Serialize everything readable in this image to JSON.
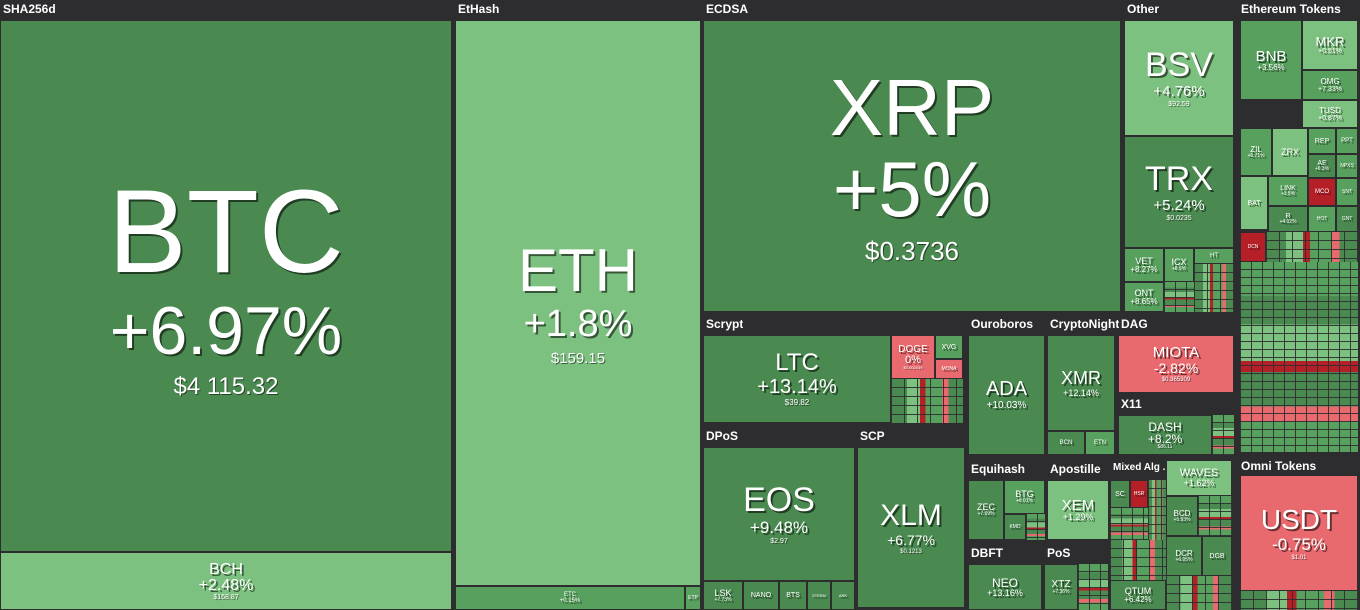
{
  "groups": {
    "sha256d": "SHA256d",
    "ethash": "EtHash",
    "ecdsa": "ECDSA",
    "other": "Other",
    "eth_tokens": "Ethereum Tokens",
    "scrypt": "Scrypt",
    "ouroboros": "Ouroboros",
    "cryptonight": "CryptoNight",
    "dag": "DAG",
    "x11": "X11",
    "dpos": "DPoS",
    "scp": "SCP",
    "equihash": "Equihash",
    "apostille": "Apostille",
    "mixed": "Mixed Alg ...",
    "omni": "Omni Tokens",
    "dbft": "DBFT",
    "pos": "PoS"
  },
  "tiles": {
    "btc": {
      "sym": "BTC",
      "chg": "+6.97%",
      "price": "$4 115.32"
    },
    "bch": {
      "sym": "BCH",
      "chg": "+2.48%",
      "price": "$168.87"
    },
    "eth": {
      "sym": "ETH",
      "chg": "+1.8%",
      "price": "$159.15"
    },
    "etc": {
      "sym": "ETC",
      "chg": "+0.15%",
      "price": ""
    },
    "etp": {
      "sym": "ETP",
      "chg": "",
      "price": ""
    },
    "xrp": {
      "sym": "XRP",
      "chg": "+5%",
      "price": "$0.3736"
    },
    "bsv": {
      "sym": "BSV",
      "chg": "+4.76%",
      "price": "$92.59"
    },
    "trx": {
      "sym": "TRX",
      "chg": "+5.24%",
      "price": "$0.0235"
    },
    "vet": {
      "sym": "VET",
      "chg": "+8.27%",
      "price": ""
    },
    "icx": {
      "sym": "ICX",
      "chg": "+8.5%",
      "price": ""
    },
    "ht": {
      "sym": "HT",
      "chg": "",
      "price": ""
    },
    "ont": {
      "sym": "ONT",
      "chg": "+8.65%",
      "price": ""
    },
    "ltc": {
      "sym": "LTC",
      "chg": "+13.14%",
      "price": "$39.82"
    },
    "doge": {
      "sym": "DOGE",
      "chg": "0%",
      "price": "$0.002039"
    },
    "xvg": {
      "sym": "XVG",
      "chg": "",
      "price": ""
    },
    "mona": {
      "sym": "MONA",
      "chg": "",
      "price": ""
    },
    "ada": {
      "sym": "ADA",
      "chg": "+10.03%",
      "price": ""
    },
    "xmr": {
      "sym": "XMR",
      "chg": "+12.14%",
      "price": ""
    },
    "bcn": {
      "sym": "BCN",
      "chg": "",
      "price": ""
    },
    "etn": {
      "sym": "ETN",
      "chg": "",
      "price": ""
    },
    "miota": {
      "sym": "MIOTA",
      "chg": "-2.82%",
      "price": "$0.365309"
    },
    "dash": {
      "sym": "DASH",
      "chg": "+8.2%",
      "price": "$86.11"
    },
    "eos": {
      "sym": "EOS",
      "chg": "+9.48%",
      "price": "$2.97"
    },
    "lsk": {
      "sym": "LSK",
      "chg": "+7.73%",
      "price": ""
    },
    "nano": {
      "sym": "NANO",
      "chg": "",
      "price": ""
    },
    "bts": {
      "sym": "BTS",
      "chg": "",
      "price": ""
    },
    "steem": {
      "sym": "STEEM",
      "chg": "",
      "price": ""
    },
    "ark": {
      "sym": "ARK",
      "chg": "",
      "price": ""
    },
    "xlm": {
      "sym": "XLM",
      "chg": "+6.77%",
      "price": "$0.1213"
    },
    "zec": {
      "sym": "ZEC",
      "chg": "+7.69%",
      "price": ""
    },
    "btg": {
      "sym": "BTG",
      "chg": "+8.01%",
      "price": ""
    },
    "kmd": {
      "sym": "KMD",
      "chg": "",
      "price": ""
    },
    "xem": {
      "sym": "XEM",
      "chg": "+1.29%",
      "price": ""
    },
    "sc": {
      "sym": "SC",
      "chg": "",
      "price": ""
    },
    "hsr": {
      "sym": "HSR",
      "chg": "",
      "price": ""
    },
    "waves": {
      "sym": "WAVES",
      "chg": "+1.62%",
      "price": ""
    },
    "bcd": {
      "sym": "BCD",
      "chg": "+5.93%",
      "price": ""
    },
    "dcr": {
      "sym": "DCR",
      "chg": "+6.05%",
      "price": ""
    },
    "dgb": {
      "sym": "DGB",
      "chg": "",
      "price": ""
    },
    "qtum": {
      "sym": "QTUM",
      "chg": "+6.42%",
      "price": ""
    },
    "neo": {
      "sym": "NEO",
      "chg": "+13.16%",
      "price": ""
    },
    "xtz": {
      "sym": "XTZ",
      "chg": "+7.36%",
      "price": ""
    },
    "usdt": {
      "sym": "USDT",
      "chg": "-0.75%",
      "price": "$1.01"
    },
    "bnb": {
      "sym": "BNB",
      "chg": "+3.56%",
      "price": ""
    },
    "mkr": {
      "sym": "MKR",
      "chg": "+0.51%",
      "price": ""
    },
    "omg": {
      "sym": "OMG",
      "chg": "+7.33%",
      "price": ""
    },
    "tusd": {
      "sym": "TUSD",
      "chg": "+0.87%",
      "price": ""
    },
    "zil": {
      "sym": "ZIL",
      "chg": "+6.71%",
      "price": ""
    },
    "zrx": {
      "sym": "ZRX",
      "chg": "",
      "price": ""
    },
    "rep": {
      "sym": "REP",
      "chg": "",
      "price": ""
    },
    "ppt": {
      "sym": "PPT",
      "chg": "",
      "price": ""
    },
    "ae": {
      "sym": "AE",
      "chg": "+6.3%",
      "price": ""
    },
    "npxs": {
      "sym": "NPXS",
      "chg": "",
      "price": ""
    },
    "link": {
      "sym": "LINK",
      "chg": "+3.5%",
      "price": ""
    },
    "mco": {
      "sym": "MCO",
      "chg": "",
      "price": ""
    },
    "bat": {
      "sym": "BAT",
      "chg": "",
      "price": ""
    },
    "r": {
      "sym": "R",
      "chg": "+4.02%",
      "price": ""
    },
    "snt": {
      "sym": "SNT",
      "chg": "",
      "price": ""
    },
    "gnt": {
      "sym": "GNT",
      "chg": "",
      "price": ""
    },
    "hot": {
      "sym": "HOT",
      "chg": "",
      "price": ""
    },
    "dcn": {
      "sym": "DCN",
      "chg": "",
      "price": ""
    }
  }
}
